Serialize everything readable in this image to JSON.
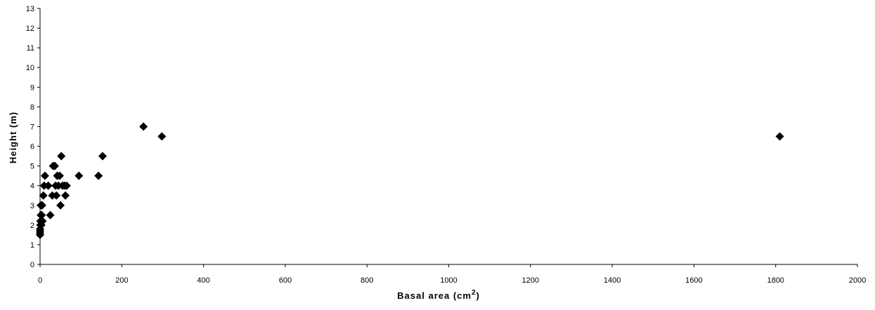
{
  "chart_data": {
    "type": "scatter",
    "xlabel": "Basal area (cm",
    "xlabel_sup": "2",
    "xlabel_end": ")",
    "ylabel": "Height (m)",
    "xlim": [
      0,
      2000
    ],
    "ylim": [
      0,
      13
    ],
    "x_ticks": [
      "0",
      "200",
      "400",
      "600",
      "800",
      "1000",
      "1200",
      "1400",
      "1600",
      "1800",
      "2000"
    ],
    "y_ticks": [
      "0",
      "1",
      "2",
      "3",
      "4",
      "5",
      "6",
      "7",
      "8",
      "9",
      "10",
      "11",
      "12",
      "13"
    ],
    "grid": false,
    "legend": "none",
    "marker": "diamond",
    "marker_color": "#000000",
    "points": [
      {
        "x": 0,
        "y": 1.5
      },
      {
        "x": 0,
        "y": 1.6
      },
      {
        "x": 0,
        "y": 1.7
      },
      {
        "x": 0,
        "y": 1.8
      },
      {
        "x": 1,
        "y": 2
      },
      {
        "x": 1,
        "y": 2.2
      },
      {
        "x": 2,
        "y": 2.5
      },
      {
        "x": 2,
        "y": 3
      },
      {
        "x": 3,
        "y": 2
      },
      {
        "x": 4,
        "y": 2.5
      },
      {
        "x": 5,
        "y": 3
      },
      {
        "x": 6,
        "y": 2.2
      },
      {
        "x": 8,
        "y": 3.5
      },
      {
        "x": 10,
        "y": 4
      },
      {
        "x": 12,
        "y": 4.5
      },
      {
        "x": 20,
        "y": 4
      },
      {
        "x": 25,
        "y": 2.5
      },
      {
        "x": 30,
        "y": 3.5
      },
      {
        "x": 32,
        "y": 5
      },
      {
        "x": 36,
        "y": 5
      },
      {
        "x": 38,
        "y": 4
      },
      {
        "x": 40,
        "y": 3.5
      },
      {
        "x": 42,
        "y": 4.5
      },
      {
        "x": 45,
        "y": 4
      },
      {
        "x": 48,
        "y": 4.5
      },
      {
        "x": 50,
        "y": 3
      },
      {
        "x": 52,
        "y": 5.5
      },
      {
        "x": 55,
        "y": 4
      },
      {
        "x": 60,
        "y": 4
      },
      {
        "x": 62,
        "y": 3.5
      },
      {
        "x": 65,
        "y": 4
      },
      {
        "x": 95,
        "y": 4.5
      },
      {
        "x": 143,
        "y": 4.5
      },
      {
        "x": 153,
        "y": 5.5
      },
      {
        "x": 253,
        "y": 7
      },
      {
        "x": 298,
        "y": 6.5
      },
      {
        "x": 1810,
        "y": 6.5
      }
    ]
  }
}
